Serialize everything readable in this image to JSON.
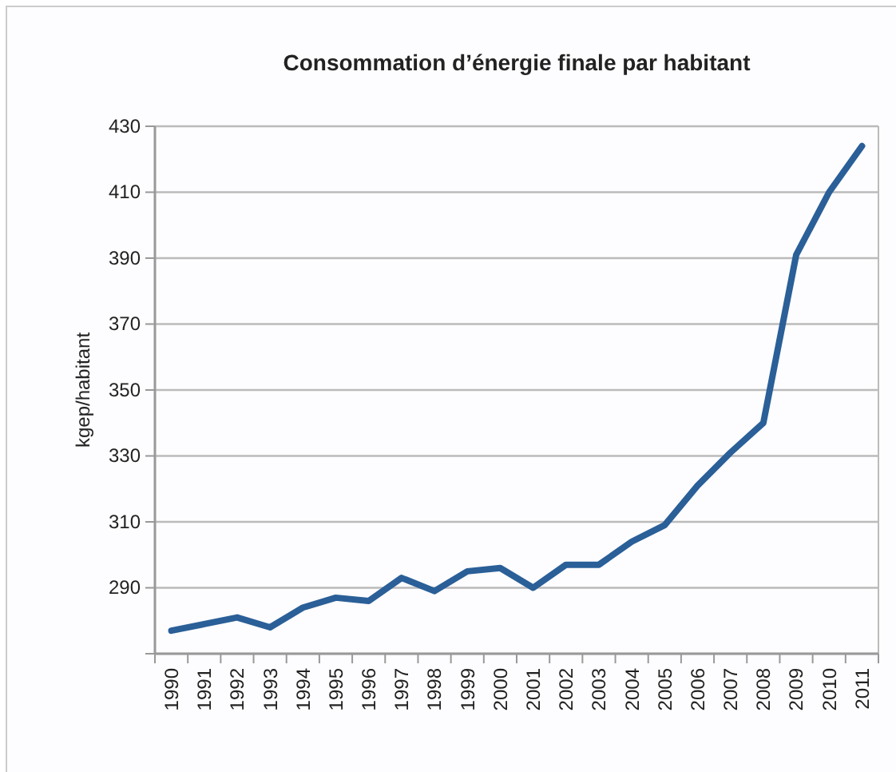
{
  "chart_data": {
    "type": "line",
    "title": "Consommation d’énergie finale par habitant",
    "ylabel": "kgep/habitant",
    "categories": [
      "1990",
      "1991",
      "1992",
      "1993",
      "1994",
      "1995",
      "1996",
      "1997",
      "1998",
      "1999",
      "2000",
      "2001",
      "2002",
      "2003",
      "2004",
      "2005",
      "2006",
      "2007",
      "2008",
      "2009",
      "2010",
      "2011"
    ],
    "series": [
      {
        "color": "#2a5f98",
        "values": [
          277,
          279,
          281,
          278,
          284,
          287,
          286,
          293,
          289,
          295,
          296,
          290,
          297,
          297,
          304,
          309,
          321,
          331,
          340,
          391,
          410,
          424
        ]
      }
    ],
    "ylim": [
      270,
      430
    ],
    "yticks": [
      {
        "value": 270,
        "label": null
      },
      290,
      310,
      330,
      350,
      370,
      390,
      410,
      430
    ],
    "grid": "y",
    "marker": "none",
    "line_style": "solid"
  }
}
